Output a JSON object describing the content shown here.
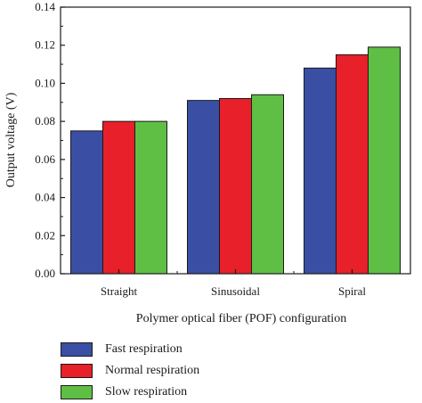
{
  "chart_data": {
    "type": "bar",
    "title": "",
    "xlabel": "Polymer optical fiber (POF) configuration",
    "ylabel": "Output voltage (V)",
    "categories": [
      "Straight",
      "Sinusoidal",
      "Spiral"
    ],
    "ylim": [
      0,
      0.14
    ],
    "yticks": [
      "0.00",
      "0.02",
      "0.04",
      "0.06",
      "0.08",
      "0.10",
      "0.12",
      "0.14"
    ],
    "grid": false,
    "legend_position": "bottom-left",
    "series": [
      {
        "name": "Fast respiration",
        "color": "#3a4fa3",
        "values": [
          0.075,
          0.091,
          0.108
        ]
      },
      {
        "name": "Normal respiration",
        "color": "#e8202a",
        "values": [
          0.08,
          0.092,
          0.115
        ]
      },
      {
        "name": "Slow respiration",
        "color": "#5fbf45",
        "values": [
          0.08,
          0.094,
          0.119
        ]
      }
    ]
  }
}
